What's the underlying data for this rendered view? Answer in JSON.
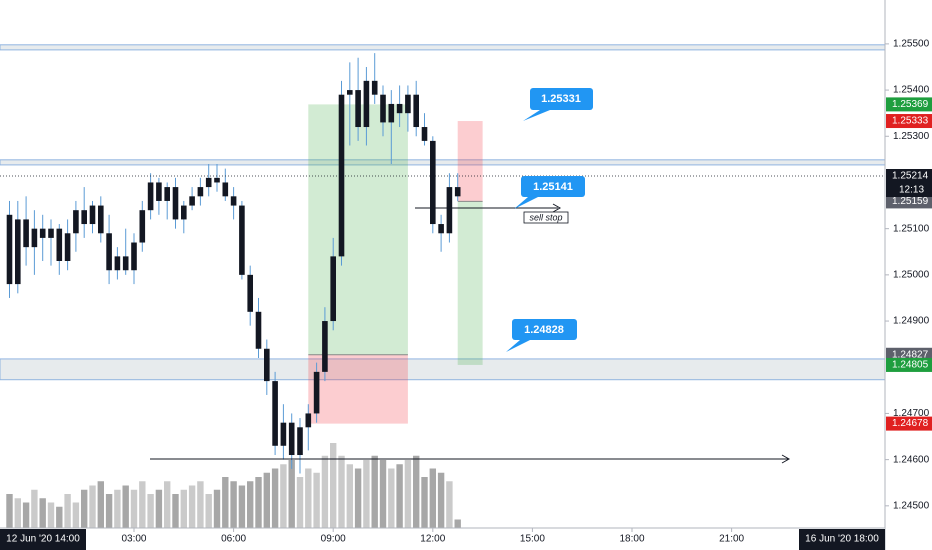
{
  "chart_data": {
    "type": "candlestick",
    "x": [
      -0.75,
      -0.5,
      -0.25,
      0,
      0.25,
      0.5,
      0.75,
      1,
      1.25,
      1.5,
      1.75,
      2,
      2.25,
      2.5,
      2.75,
      3,
      3.25,
      3.5,
      3.75,
      4,
      4.25,
      4.5,
      4.75,
      5,
      5.25,
      5.5,
      5.75,
      6,
      6.25,
      6.5,
      6.75,
      7,
      7.25,
      7.5,
      7.75,
      8,
      8.25,
      8.5,
      8.75,
      9,
      9.25,
      9.5,
      9.75,
      10,
      10.25,
      10.5,
      10.75,
      11,
      11.25,
      11.5,
      11.75,
      12,
      12.25,
      12.5,
      12.75
    ],
    "open": [
      1.2513,
      1.2498,
      1.2512,
      1.2506,
      1.251,
      1.2508,
      1.251,
      1.2503,
      1.2509,
      1.2514,
      1.2511,
      1.2515,
      1.2509,
      1.2501,
      1.2504,
      1.2501,
      1.2507,
      1.2514,
      1.252,
      1.2516,
      1.2519,
      1.2512,
      1.2515,
      1.2517,
      1.2519,
      1.2521,
      1.252,
      1.2517,
      1.2515,
      1.25,
      1.2492,
      1.2484,
      1.2477,
      1.2463,
      1.2468,
      1.2461,
      1.2467,
      1.247,
      1.2479,
      1.249,
      1.2504,
      1.2539,
      1.254,
      1.2532,
      1.2542,
      1.2539,
      1.2533,
      1.2537,
      1.2535,
      1.2539,
      1.2532,
      1.2529,
      1.2511,
      1.2509,
      1.2519
    ],
    "high": [
      1.2516,
      1.2516,
      1.2517,
      1.2514,
      1.2513,
      1.2512,
      1.2511,
      1.2512,
      1.2516,
      1.2519,
      1.2516,
      1.2517,
      1.2513,
      1.2506,
      1.251,
      1.2509,
      1.2516,
      1.2522,
      1.2521,
      1.252,
      1.2521,
      1.2516,
      1.2519,
      1.2521,
      1.2524,
      1.2524,
      1.2523,
      1.2519,
      1.2516,
      1.2502,
      1.2495,
      1.2486,
      1.2479,
      1.2472,
      1.247,
      1.2469,
      1.2472,
      1.2481,
      1.2493,
      1.2508,
      1.2542,
      1.2546,
      1.2547,
      1.2545,
      1.2548,
      1.2541,
      1.254,
      1.2541,
      1.2541,
      1.2542,
      1.2535,
      1.253,
      1.2513,
      1.2522,
      1.2522
    ],
    "low": [
      1.2495,
      1.2496,
      1.2502,
      1.25,
      1.2503,
      1.2502,
      1.25,
      1.2501,
      1.2505,
      1.2508,
      1.2509,
      1.2507,
      1.2498,
      1.2499,
      1.25,
      1.2498,
      1.2505,
      1.2512,
      1.2513,
      1.2512,
      1.251,
      1.2509,
      1.2514,
      1.2515,
      1.2517,
      1.2518,
      1.2516,
      1.2512,
      1.2499,
      1.2489,
      1.2482,
      1.2474,
      1.2461,
      1.246,
      1.2458,
      1.2457,
      1.2462,
      1.2468,
      1.2477,
      1.2488,
      1.2502,
      1.2528,
      1.2529,
      1.2528,
      1.2537,
      1.253,
      1.2524,
      1.2532,
      1.2531,
      1.253,
      1.2528,
      1.2509,
      1.2505,
      1.2507,
      1.2516
    ],
    "close": [
      1.2498,
      1.2512,
      1.2506,
      1.251,
      1.2508,
      1.251,
      1.2503,
      1.2509,
      1.2514,
      1.2511,
      1.2515,
      1.2509,
      1.2501,
      1.2504,
      1.2501,
      1.2507,
      1.2514,
      1.252,
      1.2516,
      1.2519,
      1.2512,
      1.2515,
      1.2517,
      1.2519,
      1.2521,
      1.252,
      1.2517,
      1.2515,
      1.25,
      1.2492,
      1.2484,
      1.2477,
      1.2463,
      1.2468,
      1.2461,
      1.2467,
      1.247,
      1.2479,
      1.249,
      1.2504,
      1.2539,
      1.254,
      1.2532,
      1.2542,
      1.2539,
      1.2533,
      1.2537,
      1.2535,
      1.2539,
      1.2532,
      1.2529,
      1.2511,
      1.2509,
      1.2519,
      1.2517
    ],
    "volume": [
      40,
      35,
      30,
      45,
      35,
      30,
      25,
      40,
      30,
      45,
      50,
      55,
      40,
      45,
      50,
      45,
      55,
      40,
      45,
      55,
      40,
      45,
      50,
      55,
      40,
      45,
      60,
      55,
      50,
      55,
      60,
      65,
      70,
      75,
      80,
      60,
      70,
      65,
      85,
      100,
      85,
      75,
      70,
      80,
      85,
      80,
      70,
      75,
      80,
      85,
      60,
      70,
      65,
      55,
      10
    ],
    "body_color": "#131722",
    "wick_color": "#5b9bd5",
    "volume_color": "#8a8a8a",
    "xlim": [
      -1.036,
      25.62
    ],
    "ylim": [
      1.24452,
      1.25595
    ],
    "xticks": [
      {
        "value": 3,
        "label": "03:00"
      },
      {
        "value": 6,
        "label": "06:00"
      },
      {
        "value": 9,
        "label": "09:00"
      },
      {
        "value": 12,
        "label": "12:00"
      },
      {
        "value": 15,
        "label": "15:00"
      },
      {
        "value": 18,
        "label": "18:00"
      },
      {
        "value": 21,
        "label": "21:00"
      }
    ],
    "yticks": [
      {
        "value": 1.255,
        "label": "1.25500"
      },
      {
        "value": 1.254,
        "label": "1.25400"
      },
      {
        "value": 1.253,
        "label": "1.25300"
      },
      {
        "value": 1.251,
        "label": "1.25100"
      },
      {
        "value": 1.25,
        "label": "1.25000"
      },
      {
        "value": 1.249,
        "label": "1.24900"
      },
      {
        "value": 1.247,
        "label": "1.24700"
      },
      {
        "value": 1.246,
        "label": "1.24600"
      },
      {
        "value": 1.245,
        "label": "1.24500"
      }
    ],
    "price_labels": [
      {
        "value": 1.25369,
        "color": "#1e9e3e"
      },
      {
        "value": 1.25333,
        "color": "#e02020"
      },
      {
        "value": 1.25159,
        "color": "#5d606b"
      },
      {
        "value": 1.24827,
        "color": "#5d606b"
      },
      {
        "value": 1.24805,
        "color": "#1e9e3e"
      },
      {
        "value": 1.24678,
        "color": "#e02020"
      }
    ],
    "current_price": {
      "value": 1.25214,
      "countdown": "12:13"
    },
    "zones": [
      {
        "top": 1.25498,
        "bottom": 1.25487
      },
      {
        "top": 1.25249,
        "bottom": 1.25238
      },
      {
        "top": 1.24818,
        "bottom": 1.24773
      }
    ],
    "positions": [
      {
        "start": 8.25,
        "end": 11.25,
        "target": 1.25369,
        "entry": 1.24827,
        "stop": 1.24678
      },
      {
        "start": 12.75,
        "end": 13.5,
        "stop": 1.25333,
        "entry": 1.25159,
        "target": 1.24805
      }
    ],
    "callouts": [
      "1.25331",
      "1.25141",
      "1.24828"
    ],
    "note": "sell stop",
    "start_date": "12 Jun '20  14:00",
    "end_date": "16 Jun '20  18:00"
  }
}
